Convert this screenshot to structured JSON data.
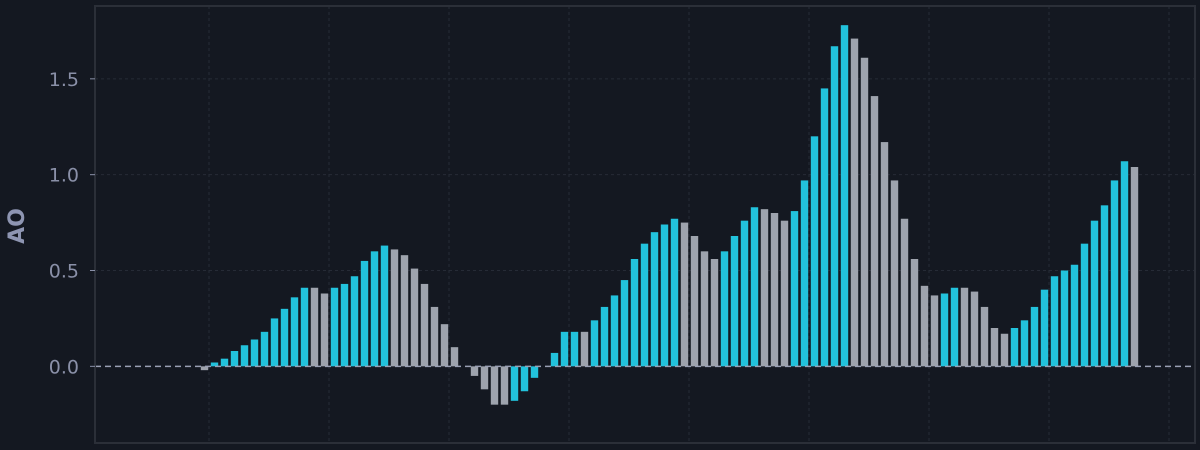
{
  "chart_data": {
    "type": "bar",
    "ylabel": "AO",
    "ylim": [
      -0.4,
      1.88
    ],
    "y_ticks": [
      0.0,
      0.5,
      1.0,
      1.5
    ],
    "y_tick_labels": [
      "0.0",
      "0.5",
      "1.0",
      "1.5"
    ],
    "grid": true,
    "zero_line": "dashed",
    "colors": {
      "background": "#141821",
      "frame": "#2b2f38",
      "grid": "#262b36",
      "tick_text": "#8a90a8",
      "label_text": "#8e95b2",
      "zero_line": "#9aa0b5",
      "rising": "#22c2dc",
      "falling": "#9ea3ad"
    },
    "series": [
      {
        "values": [
          0,
          0,
          0,
          0,
          0,
          0,
          0,
          0,
          0,
          0,
          -0.02,
          0.02,
          0.04,
          0.08,
          0.11,
          0.14,
          0.18,
          0.25,
          0.3,
          0.36,
          0.41,
          0.41,
          0.38,
          0.41,
          0.43,
          0.47,
          0.55,
          0.6,
          0.63,
          0.61,
          0.58,
          0.51,
          0.43,
          0.31,
          0.22,
          0.1,
          0.0,
          -0.05,
          -0.12,
          -0.2,
          -0.2,
          -0.18,
          -0.13,
          -0.06,
          0.0,
          0.07,
          0.18,
          0.18,
          0.18,
          0.24,
          0.31,
          0.37,
          0.45,
          0.56,
          0.64,
          0.7,
          0.74,
          0.77,
          0.75,
          0.68,
          0.6,
          0.56,
          0.6,
          0.68,
          0.76,
          0.83,
          0.82,
          0.8,
          0.76,
          0.81,
          0.97,
          1.2,
          1.45,
          1.67,
          1.78,
          1.71,
          1.61,
          1.41,
          1.17,
          0.97,
          0.77,
          0.56,
          0.42,
          0.37,
          0.38,
          0.41,
          0.41,
          0.39,
          0.31,
          0.2,
          0.17,
          0.2,
          0.24,
          0.31,
          0.4,
          0.47,
          0.5,
          0.53,
          0.64,
          0.76,
          0.84,
          0.97,
          1.07,
          1.04
        ],
        "bar_state": [
          "",
          "",
          "",
          "",
          "",
          "",
          "",
          "",
          "",
          "",
          "falling",
          "rising",
          "rising",
          "rising",
          "rising",
          "rising",
          "rising",
          "rising",
          "rising",
          "rising",
          "rising",
          "falling",
          "falling",
          "rising",
          "rising",
          "rising",
          "rising",
          "rising",
          "rising",
          "falling",
          "falling",
          "falling",
          "falling",
          "falling",
          "falling",
          "falling",
          "",
          "falling",
          "falling",
          "falling",
          "falling",
          "rising",
          "rising",
          "rising",
          "",
          "rising",
          "rising",
          "rising",
          "falling",
          "rising",
          "rising",
          "rising",
          "rising",
          "rising",
          "rising",
          "rising",
          "rising",
          "rising",
          "falling",
          "falling",
          "falling",
          "falling",
          "rising",
          "rising",
          "rising",
          "rising",
          "falling",
          "falling",
          "falling",
          "rising",
          "rising",
          "rising",
          "rising",
          "rising",
          "rising",
          "falling",
          "falling",
          "falling",
          "falling",
          "falling",
          "falling",
          "falling",
          "falling",
          "falling",
          "rising",
          "rising",
          "falling",
          "falling",
          "falling",
          "falling",
          "falling",
          "rising",
          "rising",
          "rising",
          "rising",
          "rising",
          "rising",
          "rising",
          "rising",
          "rising",
          "rising",
          "rising",
          "rising",
          "falling"
        ]
      }
    ]
  }
}
